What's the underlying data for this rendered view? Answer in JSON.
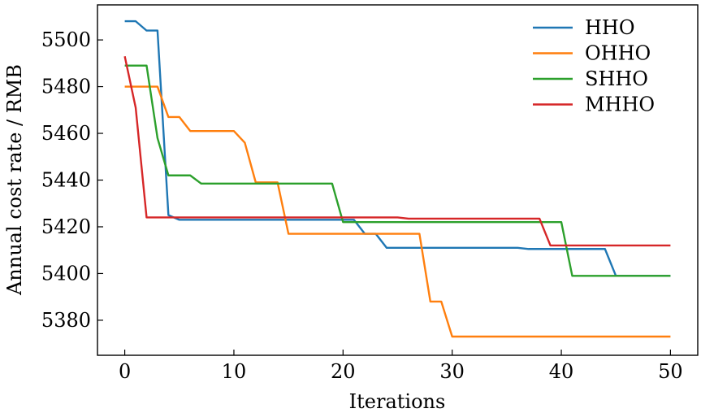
{
  "chart_data": {
    "type": "line",
    "title": "",
    "xlabel": "Iterations",
    "ylabel": "Annual cost rate / RMB",
    "xlim": [
      -2.5,
      52.5
    ],
    "ylim": [
      5365,
      5515
    ],
    "xticks": [
      0,
      10,
      20,
      30,
      40,
      50
    ],
    "xtick_labels": [
      "0",
      "10",
      "20",
      "30",
      "40",
      "50"
    ],
    "yticks": [
      5380,
      5400,
      5420,
      5440,
      5460,
      5480,
      5500
    ],
    "ytick_labels": [
      "5380",
      "5400",
      "5420",
      "5440",
      "5460",
      "5480",
      "5500"
    ],
    "grid": false,
    "legend_position": "top-right",
    "series": [
      {
        "name": "HHO",
        "color": "#1f77b4",
        "x": [
          0,
          1,
          2,
          3,
          4,
          5,
          6,
          7,
          8,
          9,
          10,
          11,
          12,
          13,
          14,
          15,
          16,
          17,
          18,
          19,
          20,
          21,
          22,
          23,
          24,
          25,
          26,
          27,
          28,
          29,
          30,
          31,
          32,
          33,
          34,
          35,
          36,
          37,
          38,
          39,
          40,
          41,
          42,
          43,
          44,
          45,
          46,
          47,
          48,
          49,
          50
        ],
        "y": [
          5508,
          5508,
          5504,
          5504,
          5425,
          5423,
          5423,
          5423,
          5423,
          5423,
          5423,
          5423,
          5423,
          5423,
          5423,
          5423,
          5423,
          5423,
          5423,
          5423,
          5423,
          5423,
          5417,
          5417,
          5411,
          5411,
          5411,
          5411,
          5411,
          5411,
          5411,
          5411,
          5411,
          5411,
          5411,
          5411,
          5411,
          5410.5,
          5410.5,
          5410.5,
          5410.5,
          5410.5,
          5410.5,
          5410.5,
          5410.5,
          5399,
          5399,
          5399,
          5399,
          5399,
          5399
        ]
      },
      {
        "name": "OHHO",
        "color": "#ff7f0e",
        "x": [
          0,
          1,
          2,
          3,
          4,
          5,
          6,
          7,
          8,
          9,
          10,
          11,
          12,
          13,
          14,
          15,
          16,
          17,
          18,
          19,
          20,
          21,
          22,
          23,
          24,
          25,
          26,
          27,
          28,
          29,
          30,
          31,
          32,
          33,
          34,
          35,
          36,
          37,
          38,
          39,
          40,
          41,
          42,
          43,
          44,
          45,
          46,
          47,
          48,
          49,
          50
        ],
        "y": [
          5480,
          5480,
          5480,
          5480,
          5467,
          5467,
          5461,
          5461,
          5461,
          5461,
          5461,
          5456,
          5439,
          5439,
          5439,
          5417,
          5417,
          5417,
          5417,
          5417,
          5417,
          5417,
          5417,
          5417,
          5417,
          5417,
          5417,
          5417,
          5388,
          5388,
          5373,
          5373,
          5373,
          5373,
          5373,
          5373,
          5373,
          5373,
          5373,
          5373,
          5373,
          5373,
          5373,
          5373,
          5373,
          5373,
          5373,
          5373,
          5373,
          5373,
          5373
        ]
      },
      {
        "name": "SHHO",
        "color": "#2ca02c",
        "x": [
          0,
          1,
          2,
          3,
          4,
          5,
          6,
          7,
          8,
          9,
          10,
          11,
          12,
          13,
          14,
          15,
          16,
          17,
          18,
          19,
          20,
          21,
          22,
          23,
          24,
          25,
          26,
          27,
          28,
          29,
          30,
          31,
          32,
          33,
          34,
          35,
          36,
          37,
          38,
          39,
          40,
          41,
          42,
          43,
          44,
          45,
          46,
          47,
          48,
          49,
          50
        ],
        "y": [
          5489,
          5489,
          5489,
          5458,
          5442,
          5442,
          5442,
          5438.5,
          5438.5,
          5438.5,
          5438.5,
          5438.5,
          5438.5,
          5438.5,
          5438.5,
          5438.5,
          5438.5,
          5438.5,
          5438.5,
          5438.5,
          5422,
          5422,
          5422,
          5422,
          5422,
          5422,
          5422,
          5422,
          5422,
          5422,
          5422,
          5422,
          5422,
          5422,
          5422,
          5422,
          5422,
          5422,
          5422,
          5422,
          5422,
          5399,
          5399,
          5399,
          5399,
          5399,
          5399,
          5399,
          5399,
          5399,
          5399
        ]
      },
      {
        "name": "MHHO",
        "color": "#d62728",
        "x": [
          0,
          1,
          2,
          3,
          4,
          5,
          6,
          7,
          8,
          9,
          10,
          11,
          12,
          13,
          14,
          15,
          16,
          17,
          18,
          19,
          20,
          21,
          22,
          23,
          24,
          25,
          26,
          27,
          28,
          29,
          30,
          31,
          32,
          33,
          34,
          35,
          36,
          37,
          38,
          39,
          40,
          41,
          42,
          43,
          44,
          45,
          46,
          47,
          48,
          49,
          50
        ],
        "y": [
          5493,
          5471,
          5424,
          5424,
          5424,
          5424,
          5424,
          5424,
          5424,
          5424,
          5424,
          5424,
          5424,
          5424,
          5424,
          5424,
          5424,
          5424,
          5424,
          5424,
          5424,
          5424,
          5424,
          5424,
          5424,
          5424,
          5423.5,
          5423.5,
          5423.5,
          5423.5,
          5423.5,
          5423.5,
          5423.5,
          5423.5,
          5423.5,
          5423.5,
          5423.5,
          5423.5,
          5423.5,
          5412,
          5412,
          5412,
          5412,
          5412,
          5412,
          5412,
          5412,
          5412,
          5412,
          5412,
          5412
        ]
      }
    ]
  }
}
